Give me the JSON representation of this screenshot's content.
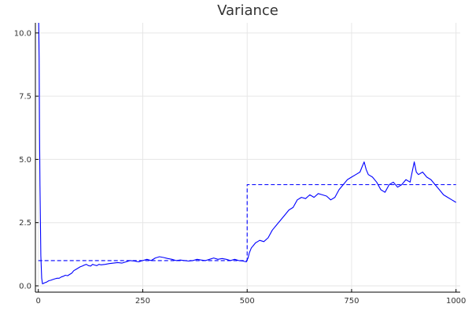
{
  "chart_data": {
    "type": "line",
    "title": "Variance",
    "xlabel": "",
    "ylabel": "",
    "xlim": [
      -7,
      1010
    ],
    "ylim": [
      -0.25,
      10.4
    ],
    "xticks": [
      0,
      250,
      500,
      750,
      1000
    ],
    "xtick_labels": [
      "0",
      "250",
      "500",
      "750",
      "1000"
    ],
    "yticks": [
      0,
      2.5,
      5,
      7.5,
      10
    ],
    "ytick_labels": [
      "0.0",
      "2.5",
      "5.0",
      "7.5",
      "10.0"
    ],
    "grid": true,
    "legend": "none",
    "series": [
      {
        "style": "solid",
        "color": "#0000ff",
        "x": [
          1,
          2,
          3,
          4,
          5,
          6,
          8,
          10,
          15,
          20,
          25,
          30,
          35,
          40,
          45,
          50,
          55,
          60,
          65,
          70,
          75,
          80,
          85,
          90,
          95,
          100,
          105,
          110,
          115,
          120,
          125,
          130,
          135,
          140,
          145,
          150,
          160,
          170,
          180,
          190,
          200,
          210,
          220,
          230,
          240,
          250,
          260,
          270,
          280,
          290,
          300,
          310,
          320,
          330,
          340,
          350,
          360,
          370,
          380,
          390,
          400,
          410,
          420,
          430,
          440,
          450,
          460,
          470,
          480,
          490,
          498,
          502,
          505,
          510,
          515,
          520,
          525,
          530,
          540,
          550,
          560,
          570,
          580,
          590,
          600,
          610,
          620,
          630,
          640,
          650,
          660,
          670,
          680,
          690,
          700,
          710,
          720,
          730,
          740,
          750,
          760,
          770,
          775,
          780,
          785,
          790,
          800,
          810,
          820,
          830,
          840,
          850,
          860,
          870,
          880,
          890,
          895,
          900,
          905,
          910,
          920,
          930,
          940,
          950,
          960,
          970,
          980,
          990,
          1000
        ],
        "y": [
          10.4,
          9.0,
          6.0,
          4.0,
          2.5,
          1.2,
          0.3,
          0.08,
          0.12,
          0.15,
          0.2,
          0.22,
          0.25,
          0.28,
          0.3,
          0.3,
          0.35,
          0.38,
          0.42,
          0.4,
          0.45,
          0.5,
          0.6,
          0.65,
          0.7,
          0.75,
          0.78,
          0.82,
          0.85,
          0.8,
          0.78,
          0.85,
          0.82,
          0.8,
          0.85,
          0.83,
          0.85,
          0.88,
          0.9,
          0.92,
          0.9,
          0.95,
          1.0,
          0.98,
          0.95,
          1.0,
          1.05,
          1.0,
          1.1,
          1.15,
          1.12,
          1.08,
          1.05,
          1.0,
          1.02,
          1.0,
          0.98,
          1.0,
          1.05,
          1.02,
          1.0,
          1.05,
          1.1,
          1.05,
          1.08,
          1.05,
          1.0,
          1.05,
          1.0,
          0.98,
          0.95,
          1.1,
          1.3,
          1.5,
          1.6,
          1.7,
          1.75,
          1.8,
          1.75,
          1.9,
          2.2,
          2.4,
          2.6,
          2.8,
          3.0,
          3.1,
          3.4,
          3.5,
          3.45,
          3.6,
          3.5,
          3.65,
          3.6,
          3.55,
          3.4,
          3.5,
          3.8,
          4.0,
          4.2,
          4.3,
          4.4,
          4.5,
          4.7,
          4.9,
          4.6,
          4.4,
          4.3,
          4.1,
          3.8,
          3.7,
          4.0,
          4.1,
          3.9,
          4.0,
          4.2,
          4.1,
          4.5,
          4.9,
          4.5,
          4.4,
          4.5,
          4.3,
          4.2,
          4.0,
          3.8,
          3.6,
          3.5,
          3.4,
          3.3
        ]
      },
      {
        "style": "dashed",
        "color": "#0000ff",
        "x": [
          0,
          500,
          500,
          1000
        ],
        "y": [
          1.0,
          1.0,
          4.0,
          4.0
        ]
      }
    ]
  }
}
